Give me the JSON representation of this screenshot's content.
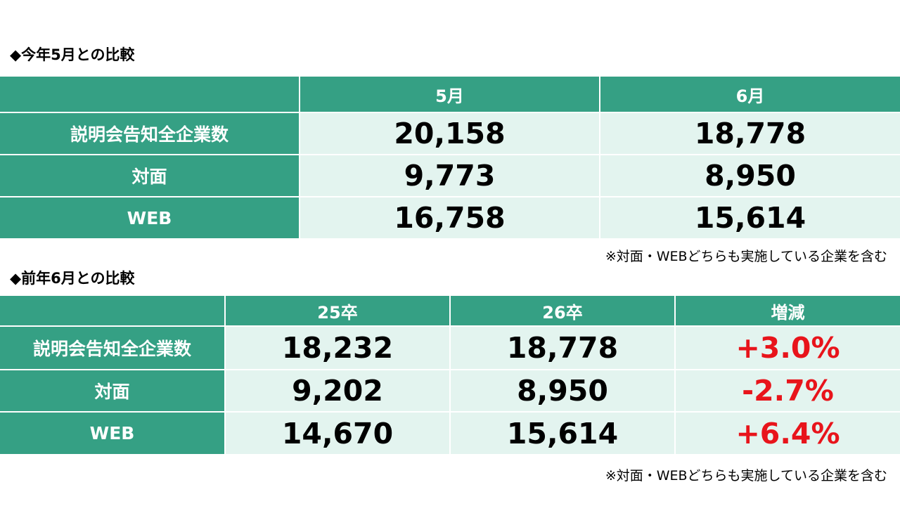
{
  "section1": {
    "title": "◆今年5月との比較",
    "headers": [
      "",
      "5月",
      "6月"
    ],
    "rows": [
      {
        "label": "説明会告知全企業数",
        "may": "20,158",
        "june": "18,778"
      },
      {
        "label": "対面",
        "may": "9,773",
        "june": "8,950"
      },
      {
        "label": "WEB",
        "may": "16,758",
        "june": "15,614"
      }
    ],
    "note": "※対面・WEBどちらも実施している企業を含む"
  },
  "section2": {
    "title": "◆前年6月との比較",
    "headers": [
      "",
      "25卒",
      "26卒",
      "増減"
    ],
    "rows": [
      {
        "label": "説明会告知全企業数",
        "y25": "18,232",
        "y26": "18,778",
        "change": "+3.0%"
      },
      {
        "label": "対面",
        "y25": "9,202",
        "y26": "8,950",
        "change": "-2.7%"
      },
      {
        "label": "WEB",
        "y25": "14,670",
        "y26": "15,614",
        "change": "+6.4%"
      }
    ],
    "note": "※対面・WEBどちらも実施している企業を含む"
  },
  "colors": {
    "header_bg": "#35a084",
    "cell_bg": "#e3f4ef",
    "header_text": "#ffffff",
    "change_text": "#e8141b"
  }
}
